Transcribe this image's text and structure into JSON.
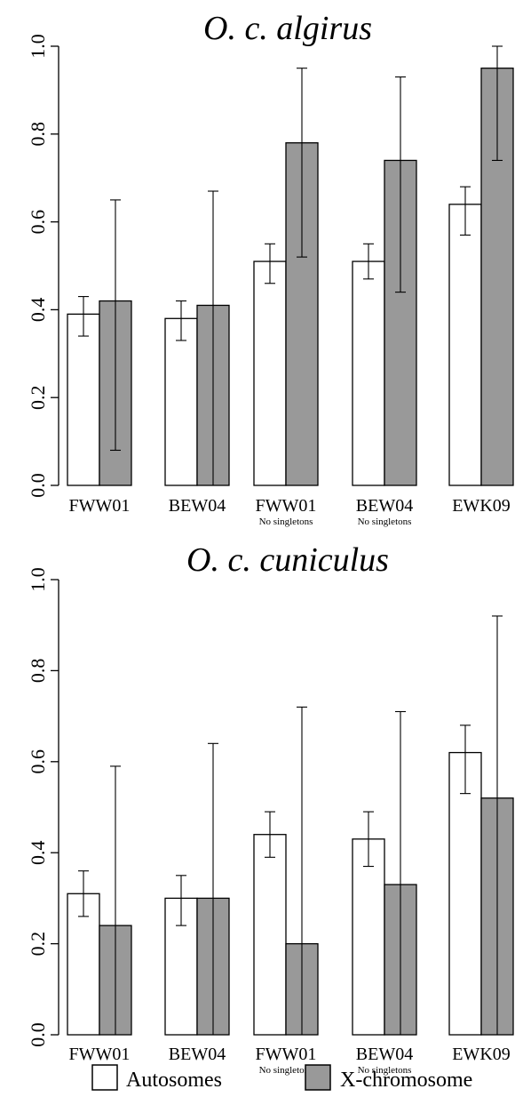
{
  "chart_data": [
    {
      "type": "bar",
      "title": "O. c. algirus",
      "categories": [
        {
          "label": "FWW01",
          "sub": ""
        },
        {
          "label": "BEW04",
          "sub": ""
        },
        {
          "label": "FWW01",
          "sub": "No singletons"
        },
        {
          "label": "BEW04",
          "sub": "No singletons"
        },
        {
          "label": "EWK09",
          "sub": ""
        }
      ],
      "series": [
        {
          "name": "Autosomes",
          "color": "#ffffff",
          "values": [
            0.39,
            0.38,
            0.51,
            0.51,
            0.64
          ],
          "err_low": [
            0.34,
            0.33,
            0.46,
            0.47,
            0.57
          ],
          "err_high": [
            0.43,
            0.42,
            0.55,
            0.55,
            0.68
          ]
        },
        {
          "name": "X-chromosome",
          "color": "#999999",
          "values": [
            0.42,
            0.41,
            0.78,
            0.74,
            0.95
          ],
          "err_low": [
            0.08,
            0.0,
            0.52,
            0.44,
            0.74
          ],
          "err_high": [
            0.65,
            0.67,
            0.95,
            0.93,
            1.0
          ]
        }
      ],
      "ylim": [
        0,
        1.0
      ],
      "yticks": [
        "0.0",
        "0.2",
        "0.4",
        "0.6",
        "0.8",
        "1.0"
      ],
      "xlabel": "",
      "ylabel": ""
    },
    {
      "type": "bar",
      "title": "O. c. cuniculus",
      "categories": [
        {
          "label": "FWW01",
          "sub": ""
        },
        {
          "label": "BEW04",
          "sub": ""
        },
        {
          "label": "FWW01",
          "sub": "No singletons"
        },
        {
          "label": "BEW04",
          "sub": "No singletons"
        },
        {
          "label": "EWK09",
          "sub": ""
        }
      ],
      "series": [
        {
          "name": "Autosomes",
          "color": "#ffffff",
          "values": [
            0.31,
            0.3,
            0.44,
            0.43,
            0.62
          ],
          "err_low": [
            0.26,
            0.24,
            0.39,
            0.37,
            0.53
          ],
          "err_high": [
            0.36,
            0.35,
            0.49,
            0.49,
            0.68
          ]
        },
        {
          "name": "X-chromosome",
          "color": "#999999",
          "values": [
            0.24,
            0.3,
            0.2,
            0.33,
            0.52
          ],
          "err_low": [
            0.0,
            0.0,
            0.0,
            0.0,
            0.0
          ],
          "err_high": [
            0.59,
            0.64,
            0.72,
            0.71,
            0.92
          ]
        }
      ],
      "ylim": [
        0,
        1.0
      ],
      "yticks": [
        "0.0",
        "0.2",
        "0.4",
        "0.6",
        "0.8",
        "1.0"
      ],
      "xlabel": "",
      "ylabel": ""
    }
  ],
  "legend": {
    "position": "bottom",
    "items": [
      {
        "label": "Autosomes",
        "color": "#ffffff"
      },
      {
        "label": "X-chromosome",
        "color": "#999999"
      }
    ]
  }
}
